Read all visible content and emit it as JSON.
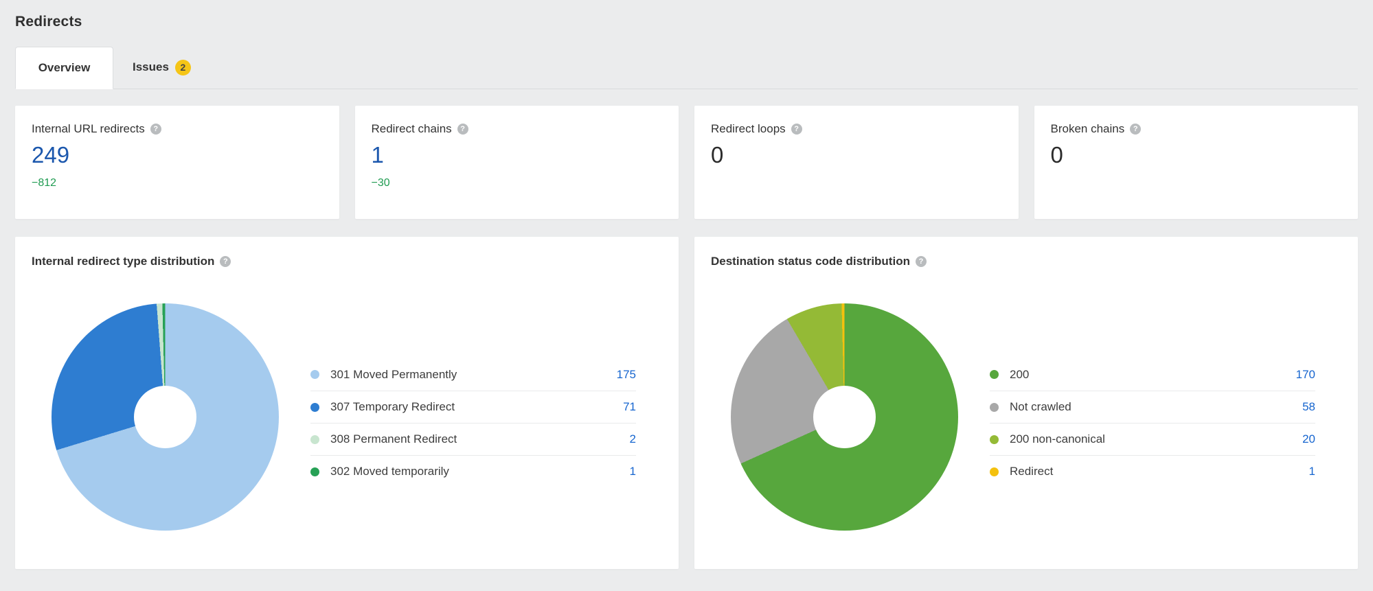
{
  "header": {
    "title": "Redirects"
  },
  "tabs": [
    {
      "label": "Overview",
      "active": true
    },
    {
      "label": "Issues",
      "badge": "2",
      "badge_color": "#f5c517"
    }
  ],
  "stats": [
    {
      "label": "Internal URL redirects",
      "value": "249",
      "delta": "−812",
      "value_color": "#1b57ad",
      "delta_color": "#1f9b51"
    },
    {
      "label": "Redirect chains",
      "value": "1",
      "delta": "−30",
      "value_color": "#1b57ad",
      "delta_color": "#1f9b51"
    },
    {
      "label": "Redirect loops",
      "value": "0",
      "value_color": "#2b2b2b"
    },
    {
      "label": "Broken chains",
      "value": "0",
      "value_color": "#2b2b2b"
    }
  ],
  "help_icon_glyph": "?",
  "charts": [
    {
      "title": "Internal redirect type distribution",
      "chart_data": {
        "type": "pie",
        "subtype": "donut",
        "title": "Internal redirect type distribution",
        "categories": [
          "301 Moved Permanently",
          "307 Temporary Redirect",
          "308 Permanent Redirect",
          "302 Moved temporarily"
        ],
        "values": [
          175,
          71,
          2,
          1
        ],
        "colors": [
          "#a5cbee",
          "#2e7dd1",
          "#c8e5cf",
          "#27a156"
        ],
        "total": 249,
        "start_angle_deg": 0,
        "direction": "clockwise",
        "legend_position": "right",
        "value_link_color": "#1665cf"
      }
    },
    {
      "title": "Destination status code distribution",
      "chart_data": {
        "type": "pie",
        "subtype": "donut",
        "title": "Destination status code distribution",
        "categories": [
          "200",
          "Not crawled",
          "200 non-canonical",
          "Redirect"
        ],
        "values": [
          170,
          58,
          20,
          1
        ],
        "colors": [
          "#57a73d",
          "#a8a8a8",
          "#94ba36",
          "#f4c10e"
        ],
        "total": 249,
        "start_angle_deg": 0,
        "direction": "clockwise",
        "legend_position": "right",
        "value_link_color": "#1665cf"
      }
    }
  ]
}
